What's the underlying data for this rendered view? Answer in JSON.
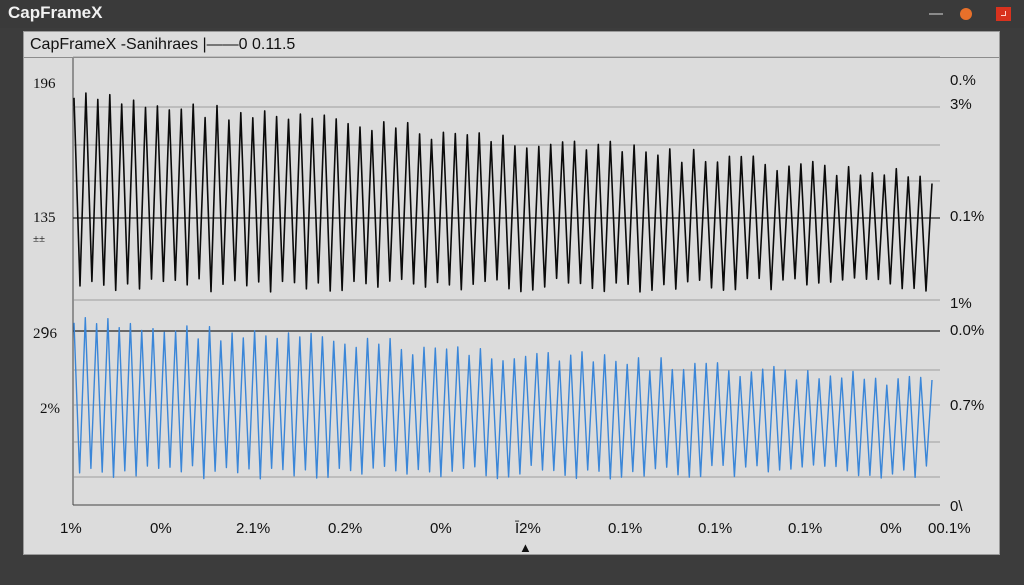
{
  "window": {
    "title": "CapFrameX",
    "controls": {
      "minimize": "minimize-icon",
      "status": "orange-dot-icon",
      "close": "close-icon"
    }
  },
  "header": {
    "subtitle": "CapFrameX -Sanihraes |——0 0.11.5"
  },
  "left_labels": {
    "top": "196",
    "mid": "135",
    "mid_small": "±±",
    "lower": "2Ꝯ6",
    "lower2": "2%"
  },
  "right_labels": [
    "0.%",
    "3%",
    "0.1%",
    "1%",
    "0.0%",
    "0.7%",
    "0\\"
  ],
  "x_tick_labels": [
    "1%",
    "0%",
    "2.1%",
    "0.2%",
    "0%",
    "Ī2%",
    "0.1%",
    "0.1%",
    "0.1%",
    "0%",
    "00.1%"
  ],
  "marker": "▲",
  "colors": {
    "black_series": "#0a0a0a",
    "blue_series": "#3a86d8",
    "highlight": "#e0301e",
    "background": "#dcdcdc"
  },
  "chart_data": [
    {
      "type": "line",
      "title": "",
      "series": [
        {
          "color": "#0a0a0a",
          "cycles": 72,
          "peak_start": 190,
          "peak_end": 175,
          "trough": 115,
          "midline": 135
        }
      ],
      "ylim": [
        100,
        196
      ]
    },
    {
      "type": "line",
      "title": "",
      "series": [
        {
          "color": "#3a86d8",
          "cycles": 76,
          "peak_start": 1.0,
          "peak_end": 0.6,
          "trough": 0.0
        }
      ]
    }
  ]
}
